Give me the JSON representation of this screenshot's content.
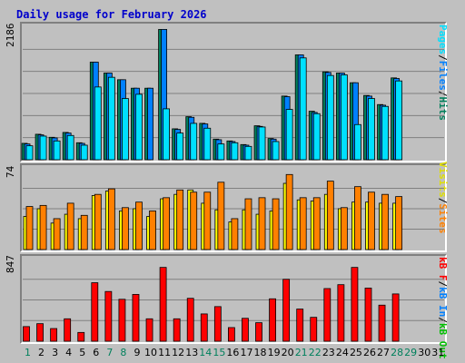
{
  "title": "Daily usage for February 2026",
  "colors": {
    "hits": "#00805c",
    "files": "#0080ff",
    "pages": "#00e0ff",
    "visits": "#ffff00",
    "sites": "#ff8000",
    "kb_in": "#0080ff",
    "kb_out": "#00c000",
    "kb_f": "#ff0000",
    "grid": "#808080",
    "day_weekday": "#000000",
    "day_weekend": "#00805c",
    "title": "#0000cc",
    "background": "#c0c0c0"
  },
  "legend": {
    "right_top": [
      "Pages",
      "/",
      "Files",
      "/",
      "Hits"
    ],
    "right_mid": [
      "Visits",
      "/",
      "Sites"
    ],
    "right_bot": [
      "kB F",
      "/",
      "kB In",
      "/",
      "kB Out"
    ]
  },
  "chart_data": [
    {
      "type": "bar",
      "title": "Daily usage for February 2026",
      "ymax_label": "2186",
      "ylim": [
        0,
        2186
      ],
      "grid": true,
      "x": [
        1,
        2,
        3,
        4,
        5,
        6,
        7,
        8,
        9,
        10,
        11,
        12,
        13,
        14,
        15,
        16,
        17,
        18,
        19,
        20,
        21,
        22,
        23,
        24,
        25,
        26,
        27,
        28
      ],
      "series": [
        {
          "name": "Hits",
          "values": [
            270,
            420,
            370,
            450,
            280,
            1610,
            1430,
            1320,
            1180,
            1180,
            2150,
            510,
            710,
            600,
            340,
            310,
            250,
            560,
            350,
            1050,
            1730,
            800,
            1450,
            1430,
            1270,
            1060,
            910,
            1350
          ]
        },
        {
          "name": "Files",
          "values": [
            260,
            410,
            360,
            440,
            270,
            1610,
            1430,
            1320,
            1180,
            1180,
            2150,
            500,
            700,
            590,
            330,
            300,
            240,
            550,
            340,
            1040,
            1730,
            780,
            1440,
            1430,
            1270,
            1050,
            900,
            1340
          ]
        },
        {
          "name": "Pages",
          "values": [
            230,
            390,
            310,
            400,
            240,
            1200,
            1360,
            1010,
            1080,
            0,
            840,
            440,
            600,
            520,
            260,
            280,
            220,
            540,
            300,
            830,
            1680,
            760,
            1390,
            1400,
            580,
            1010,
            880,
            1300
          ]
        }
      ]
    },
    {
      "type": "bar",
      "ymax_label": "74",
      "ylim": [
        0,
        74
      ],
      "grid": true,
      "x": [
        1,
        2,
        3,
        4,
        5,
        6,
        7,
        8,
        9,
        10,
        11,
        12,
        13,
        14,
        15,
        16,
        17,
        18,
        19,
        20,
        21,
        22,
        23,
        24,
        25,
        26,
        27,
        28
      ],
      "series": [
        {
          "name": "Visits",
          "values": [
            30,
            37,
            24,
            32,
            28,
            49,
            53,
            35,
            37,
            30,
            46,
            50,
            54,
            42,
            36,
            25,
            36,
            32,
            35,
            60,
            45,
            44,
            50,
            37,
            43,
            43,
            42,
            42
          ]
        },
        {
          "name": "Sites",
          "values": [
            39,
            40,
            28,
            42,
            31,
            50,
            55,
            38,
            43,
            35,
            47,
            54,
            52,
            52,
            61,
            28,
            46,
            47,
            46,
            68,
            47,
            47,
            62,
            38,
            57,
            52,
            50,
            48
          ]
        }
      ]
    },
    {
      "type": "bar",
      "ymax_label": "847",
      "ylim": [
        0,
        847
      ],
      "grid": true,
      "x": [
        1,
        2,
        3,
        4,
        5,
        6,
        7,
        8,
        9,
        10,
        11,
        12,
        13,
        14,
        15,
        16,
        17,
        18,
        19,
        20,
        21,
        22,
        23,
        24,
        25,
        26,
        27,
        28
      ],
      "series": [
        {
          "name": "kB F",
          "values": [
            150,
            180,
            130,
            230,
            90,
            600,
            510,
            430,
            480,
            230,
            757,
            230,
            440,
            280,
            355,
            140,
            235,
            190,
            435,
            635,
            330,
            245,
            540,
            580,
            757,
            545,
            370,
            485
          ]
        }
      ]
    }
  ],
  "days": [
    "1",
    "2",
    "3",
    "4",
    "5",
    "6",
    "7",
    "8",
    "9",
    "10",
    "11",
    "12",
    "13",
    "14",
    "15",
    "16",
    "17",
    "18",
    "19",
    "20",
    "21",
    "22",
    "23",
    "24",
    "25",
    "26",
    "27",
    "28",
    "29",
    "30",
    "31"
  ],
  "weekend_days": [
    1,
    7,
    8,
    14,
    15,
    21,
    22,
    28,
    29
  ]
}
